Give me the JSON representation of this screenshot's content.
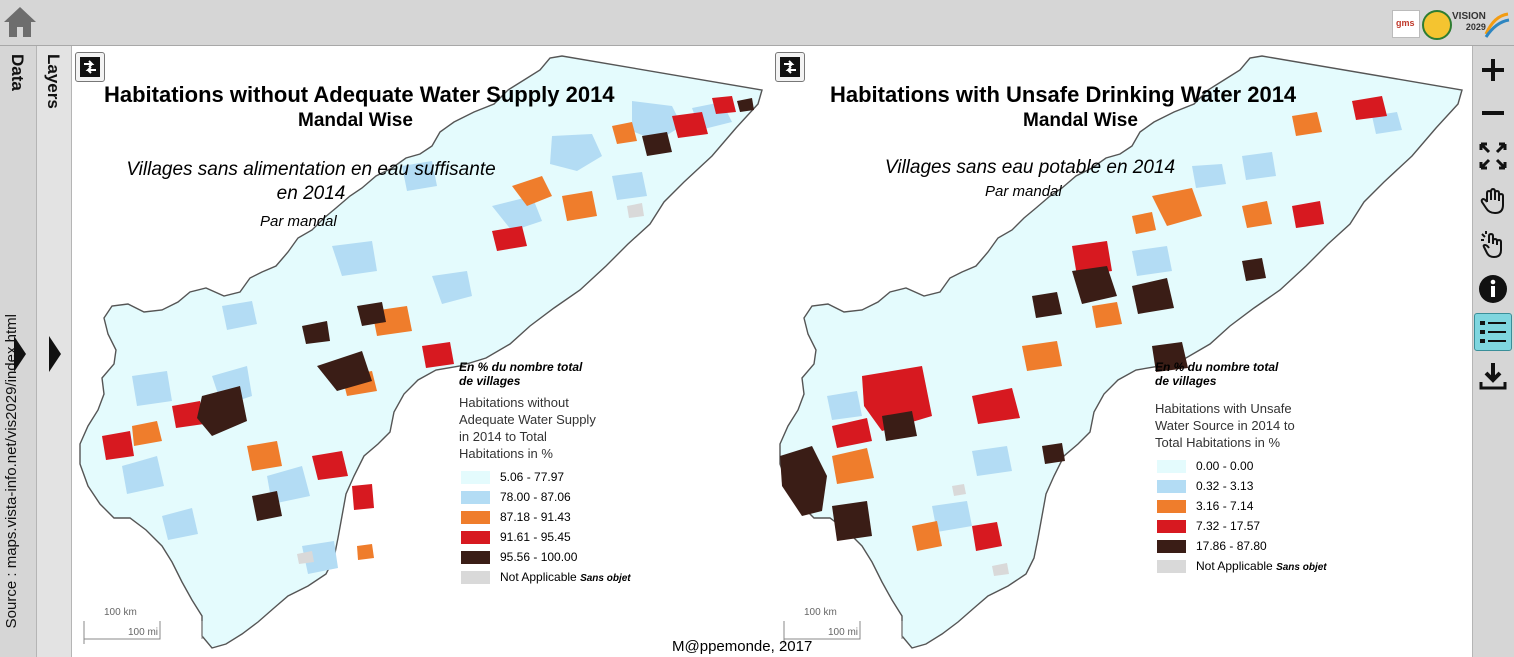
{
  "topbar": {
    "home_icon": "home-icon",
    "logos": {
      "gms": "gms",
      "vision": "VISION",
      "vision_year": "2029"
    }
  },
  "sidebar": {
    "data_tab": "Data",
    "layers_tab": "Layers",
    "source": "Source : maps.vista-info.net/vis2029/index.html"
  },
  "toolbar": {
    "tools": [
      "zoom-in-icon",
      "zoom-out-icon",
      "fullscreen-icon",
      "pan-hand-icon",
      "select-pointer-icon",
      "info-icon",
      "legend-list-icon",
      "download-icon"
    ],
    "active_tool": "legend-list-icon"
  },
  "left_map": {
    "title": "Habitations without Adequate Water Supply 2014",
    "subtitle": "Mandal Wise",
    "fr_title_line1": "Villages sans alimentation en eau suffisante",
    "fr_title_line2": "en 2014",
    "fr_subtitle": "Par mandal",
    "legend": {
      "fr_note_line1": "En % du nombre total",
      "fr_note_line2": "de villages",
      "title_lines": [
        "Habitations without",
        "Adequate Water Supply",
        "in 2014 to Total",
        "Habitations in %"
      ],
      "classes": [
        {
          "label": "5.06 - 77.97",
          "color": "#e4fbfd"
        },
        {
          "label": "78.00 - 87.06",
          "color": "#b3dcf4"
        },
        {
          "label": "87.18 - 91.43",
          "color": "#ef7d2c"
        },
        {
          "label": "91.61 - 95.45",
          "color": "#d71920"
        },
        {
          "label": "95.56 - 100.00",
          "color": "#3a1d16"
        }
      ],
      "na_label": "Not Applicable",
      "na_fr": "Sans objet",
      "na_color": "#d9d9d9"
    },
    "scale_km": "100 km",
    "scale_mi": "100 mi"
  },
  "right_map": {
    "title": "Habitations with Unsafe Drinking Water 2014",
    "subtitle": "Mandal Wise",
    "fr_title_line1": "Villages sans eau potable en 2014",
    "fr_subtitle": "Par mandal",
    "legend": {
      "fr_note_line1": "En % du nombre total",
      "fr_note_line2": "de villages",
      "title_lines": [
        "Habitations with Unsafe",
        "Water Source in 2014 to",
        "Total Habitations in %"
      ],
      "classes": [
        {
          "label": "0.00 - 0.00",
          "color": "#e4fbfd"
        },
        {
          "label": "0.32 - 3.13",
          "color": "#b3dcf4"
        },
        {
          "label": "3.16 - 7.14",
          "color": "#ef7d2c"
        },
        {
          "label": "7.32 - 17.57",
          "color": "#d71920"
        },
        {
          "label": "17.86 - 87.80",
          "color": "#3a1d16"
        }
      ],
      "na_label": "Not Applicable",
      "na_fr": "Sans objet",
      "na_color": "#d9d9d9"
    },
    "scale_km": "100 km",
    "scale_mi": "100 mi"
  },
  "credit": "M@ppemonde, 2017"
}
